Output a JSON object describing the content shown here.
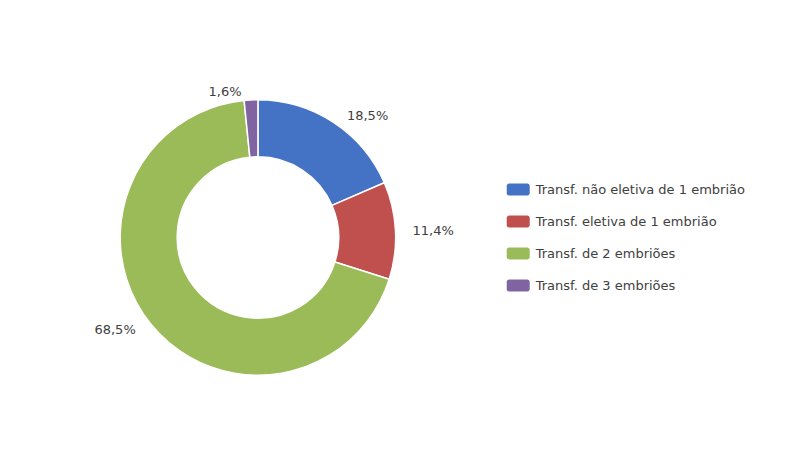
{
  "chart_data": {
    "type": "pie",
    "categories": [
      "Transf. não eletiva de 1 embrião",
      "Transf. eletiva de 1 embrião",
      "Transf. de 2 embriões",
      "Transf. de 3 embriões"
    ],
    "values": [
      18.5,
      11.4,
      68.5,
      1.6
    ],
    "value_labels": [
      "18,5%",
      "11,4%",
      "68,5%",
      "1,6%"
    ],
    "colors": [
      "#4472C4",
      "#C0504D",
      "#9BBB59",
      "#8064A2"
    ],
    "data_labels": true,
    "legend": "right"
  }
}
